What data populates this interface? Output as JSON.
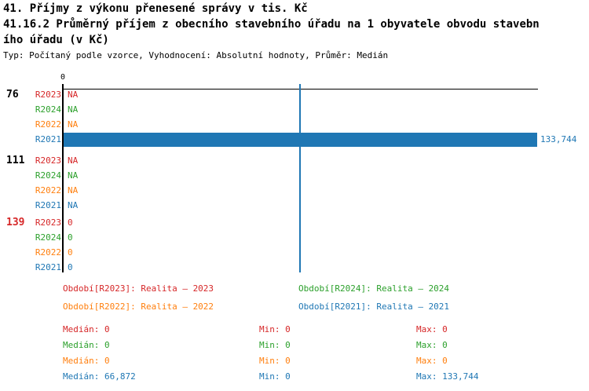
{
  "header": {
    "title_line1": "41. Příjmy z výkonu přenesené správy v tis. Kč",
    "title_line2": "41.16.2 Průměrný příjem z obecního stavebního úřadu na 1 obyvatele obvodu stavebn",
    "title_line3": "ího úřadu (v Kč)",
    "subtitle": "Typ: Počítaný podle vzorce, Vyhodnocení: Absolutní hodnoty, Průměr: Medián"
  },
  "colors": {
    "axis": "#000000",
    "background": "#ffffff",
    "series_R2023": "#d62728",
    "series_R2024": "#2ca02c",
    "series_R2022": "#ff7f0e",
    "series_R2021": "#1f77b4",
    "group_label_default": "#000000",
    "group_label_alert": "#d62728"
  },
  "chart_data": {
    "type": "bar",
    "orientation": "horizontal",
    "value_axis": {
      "tick_labels": [
        "0"
      ],
      "min": 0,
      "max": 133744
    },
    "median_line": {
      "value": 66872,
      "color": "#1f77b4"
    },
    "series_colors": {
      "R2023": "#d62728",
      "R2024": "#2ca02c",
      "R2022": "#ff7f0e",
      "R2021": "#1f77b4"
    },
    "groups": [
      {
        "label": "76",
        "label_color": "#000000",
        "rows": [
          {
            "series": "R2023",
            "value": null,
            "value_text": "NA"
          },
          {
            "series": "R2024",
            "value": null,
            "value_text": "NA"
          },
          {
            "series": "R2022",
            "value": null,
            "value_text": "NA"
          },
          {
            "series": "R2021",
            "value": 133744,
            "value_text": "133,744"
          }
        ]
      },
      {
        "label": "111",
        "label_color": "#000000",
        "rows": [
          {
            "series": "R2023",
            "value": null,
            "value_text": "NA"
          },
          {
            "series": "R2024",
            "value": null,
            "value_text": "NA"
          },
          {
            "series": "R2022",
            "value": null,
            "value_text": "NA"
          },
          {
            "series": "R2021",
            "value": null,
            "value_text": "NA"
          }
        ]
      },
      {
        "label": "139",
        "label_color": "#d62728",
        "rows": [
          {
            "series": "R2023",
            "value": 0,
            "value_text": "0"
          },
          {
            "series": "R2024",
            "value": 0,
            "value_text": "0"
          },
          {
            "series": "R2022",
            "value": 0,
            "value_text": "0"
          },
          {
            "series": "R2021",
            "value": 0,
            "value_text": "0"
          }
        ]
      }
    ]
  },
  "legend": {
    "items": [
      {
        "label": "Období[R2023]: Realita – 2023",
        "color": "#d62728"
      },
      {
        "label": "Období[R2024]: Realita – 2024",
        "color": "#2ca02c"
      },
      {
        "label": "Období[R2022]: Realita – 2022",
        "color": "#ff7f0e"
      },
      {
        "label": "Období[R2021]: Realita – 2021",
        "color": "#1f77b4"
      }
    ]
  },
  "stats": {
    "labels": {
      "median": "Medián",
      "min": "Min",
      "max": "Max"
    },
    "rows": [
      {
        "series": "R2023",
        "color": "#d62728",
        "median": "0",
        "min": "0",
        "max": "0"
      },
      {
        "series": "R2024",
        "color": "#2ca02c",
        "median": "0",
        "min": "0",
        "max": "0"
      },
      {
        "series": "R2022",
        "color": "#ff7f0e",
        "median": "0",
        "min": "0",
        "max": "0"
      },
      {
        "series": "R2021",
        "color": "#1f77b4",
        "median": "66,872",
        "min": "0",
        "max": "133,744"
      }
    ]
  }
}
